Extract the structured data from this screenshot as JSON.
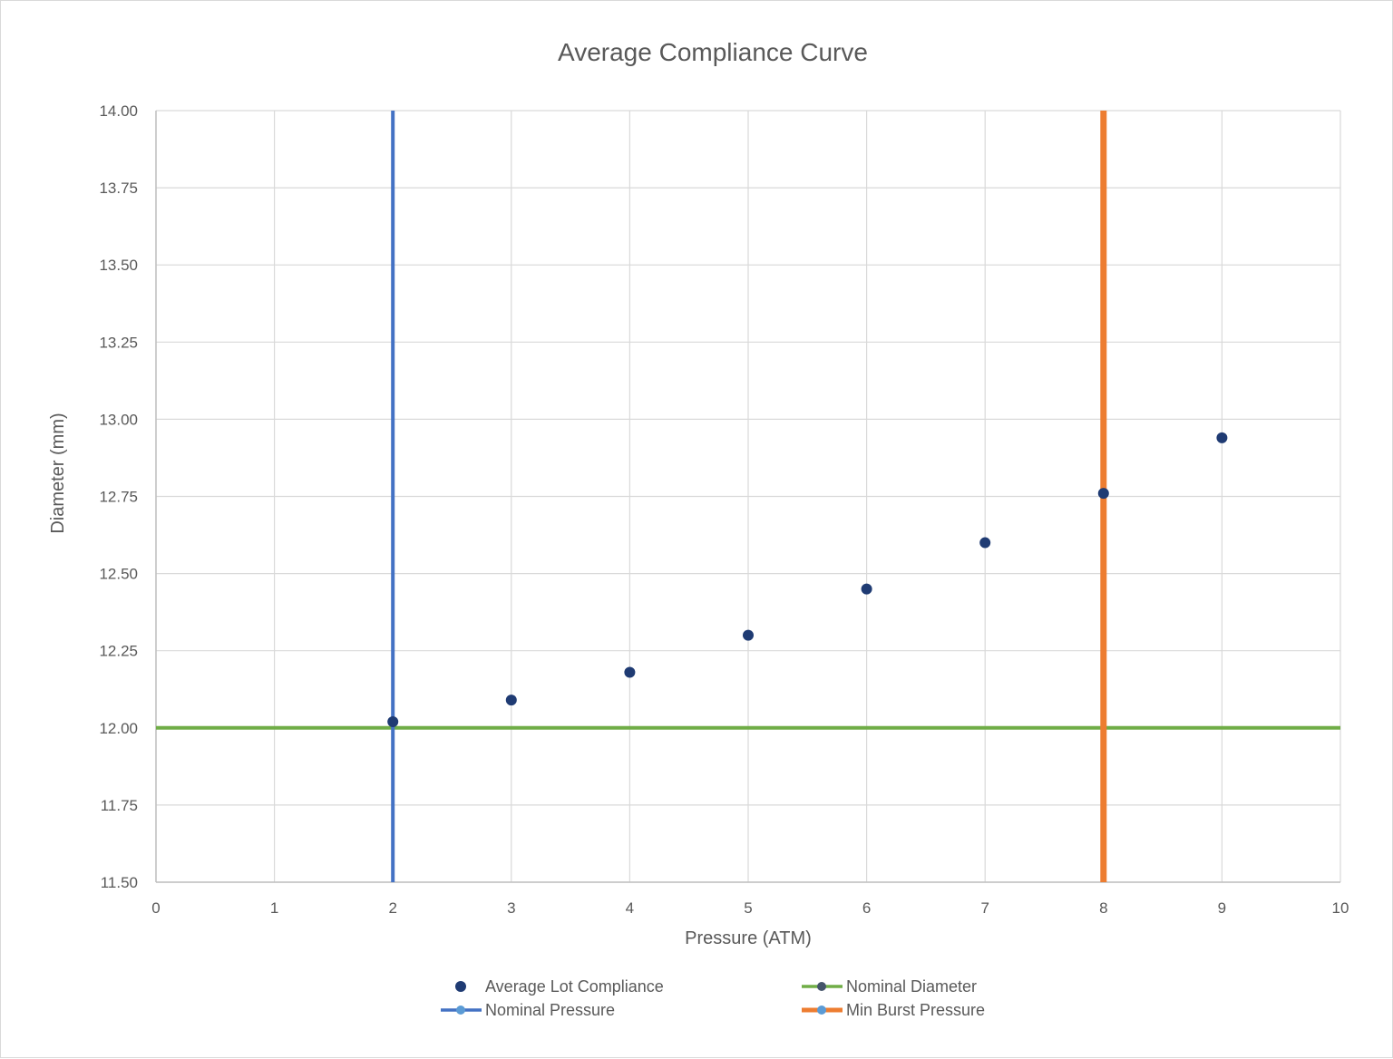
{
  "chart_data": {
    "type": "scatter",
    "title": "Average Compliance Curve",
    "xlabel": "Pressure (ATM)",
    "ylabel": "Diameter (mm)",
    "xlim": [
      0,
      10
    ],
    "ylim": [
      11.5,
      14.0
    ],
    "xticks": [
      0,
      1,
      2,
      3,
      4,
      5,
      6,
      7,
      8,
      9,
      10
    ],
    "yticks": [
      "11.50",
      "11.75",
      "12.00",
      "12.25",
      "12.50",
      "12.75",
      "13.00",
      "13.25",
      "13.50",
      "13.75",
      "14.00"
    ],
    "grid": true,
    "legend_position": "bottom",
    "series": [
      {
        "name": "Average Lot Compliance",
        "kind": "markers",
        "color": "#1f3b73",
        "x": [
          2,
          3,
          4,
          5,
          6,
          7,
          8,
          9
        ],
        "y": [
          12.02,
          12.09,
          12.18,
          12.3,
          12.45,
          12.6,
          12.76,
          12.94
        ]
      },
      {
        "name": "Nominal Diameter",
        "kind": "hline",
        "color": "#70ad47",
        "y": 12.0
      },
      {
        "name": "Nominal Pressure",
        "kind": "vline",
        "color": "#4472c4",
        "x": 2
      },
      {
        "name": "Min Burst Pressure",
        "kind": "vline",
        "color": "#ed7d31",
        "x": 8
      }
    ]
  }
}
